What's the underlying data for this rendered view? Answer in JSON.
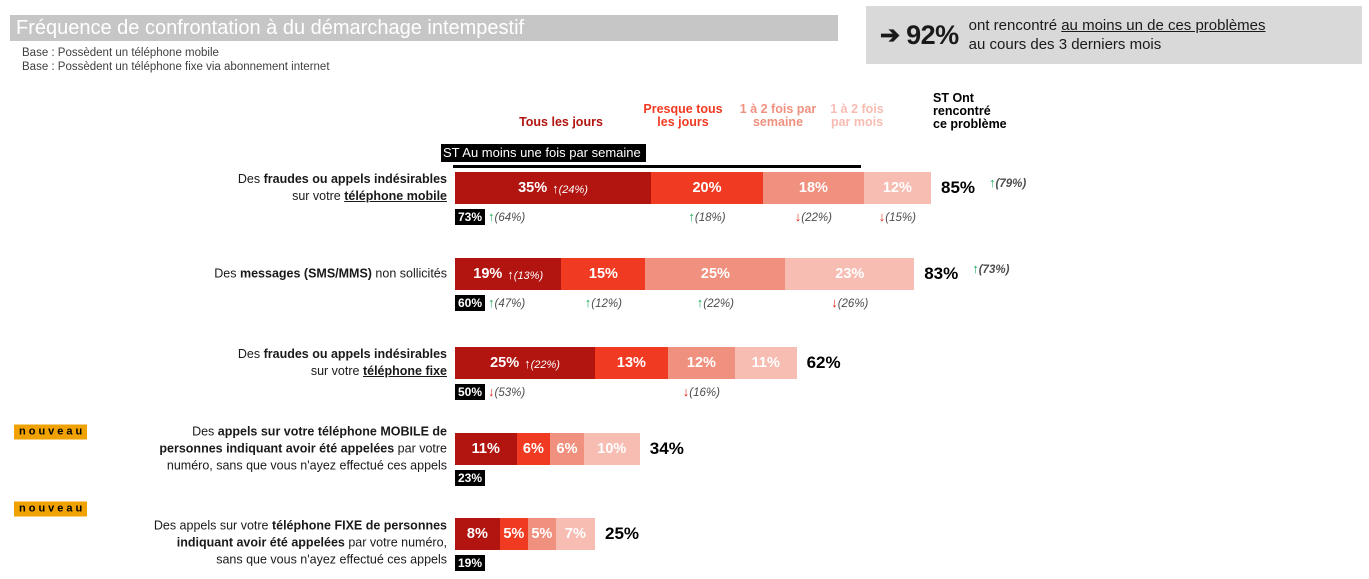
{
  "title": "Fréquence de confrontation à du démarchage intempestif",
  "base_lines": {
    "line1": "Base : Possèdent un téléphone mobile",
    "line2": "Base : Possèdent un téléphone fixe via abonnement internet"
  },
  "headline": {
    "arrow": "➔",
    "value": "92%",
    "text_before_underline": "ont rencontré ",
    "text_underlined": "au moins un de ces problèmes",
    "text_line2": "au cours des 3 derniers mois"
  },
  "legend": [
    {
      "label": "Tous les jours",
      "color": "#b21410"
    },
    {
      "label": "Presque tous\nles jours",
      "color": "#f13a22"
    },
    {
      "label": "1 à 2 fois par\nsemaine",
      "color": "#f0907e"
    },
    {
      "label": "1 à 2 fois\npar mois",
      "color": "#f7bcb2"
    }
  ],
  "st_col_header": "ST Ont\nrencontré\nce problème",
  "st_week_axis_label": "ST Au moins une fois par semaine",
  "badge_text": "nouveau",
  "chart_data": {
    "type": "bar",
    "orientation": "horizontal-stacked",
    "unit": "%",
    "categories": [
      "Tous les jours",
      "Presque tous les jours",
      "1 à 2 fois par semaine",
      "1 à 2 fois par mois"
    ],
    "category_colors": [
      "#b21410",
      "#f13a22",
      "#f0907e",
      "#f7bcb2"
    ],
    "rows": [
      {
        "badge": null,
        "label_parts": [
          {
            "t": "Des "
          },
          {
            "t": "fraudes ou appels indésirables",
            "b": 1
          },
          {
            "t": "\nsur votre "
          },
          {
            "t": "téléphone mobile",
            "b": 1,
            "u": 1
          }
        ],
        "values": [
          35,
          20,
          18,
          12
        ],
        "value_labels": [
          "35%",
          "20%",
          "18%",
          "12%"
        ],
        "inbar_notes": [
          {
            "dir": "up",
            "text": "(24%)"
          },
          null,
          null,
          null
        ],
        "total": "85%",
        "total_note": {
          "dir": "up",
          "text": "(79%)"
        },
        "st_week": "73%",
        "st_week_note": {
          "dir": "up",
          "text": "(64%)"
        },
        "seg_notes": [
          null,
          {
            "dir": "up",
            "text": "(18%)"
          },
          {
            "dir": "down",
            "text": "(22%)"
          },
          {
            "dir": "down",
            "text": "(15%)"
          }
        ]
      },
      {
        "badge": null,
        "label_parts": [
          {
            "t": "Des "
          },
          {
            "t": "messages (SMS/MMS)",
            "b": 1
          },
          {
            "t": " non sollicités"
          }
        ],
        "values": [
          19,
          15,
          25,
          23
        ],
        "value_labels": [
          "19%",
          "15%",
          "25%",
          "23%"
        ],
        "inbar_notes": [
          {
            "dir": "up",
            "text": "(13%)"
          },
          null,
          null,
          null
        ],
        "total": "83%",
        "total_note": {
          "dir": "up",
          "text": "(73%)"
        },
        "st_week": "60%",
        "st_week_note": {
          "dir": "up",
          "text": "(47%)"
        },
        "seg_notes": [
          null,
          {
            "dir": "up",
            "text": "(12%)"
          },
          {
            "dir": "up",
            "text": "(22%)"
          },
          {
            "dir": "down",
            "text": "(26%)"
          }
        ]
      },
      {
        "badge": null,
        "label_parts": [
          {
            "t": "Des "
          },
          {
            "t": "fraudes ou appels indésirables",
            "b": 1
          },
          {
            "t": "\nsur votre "
          },
          {
            "t": "téléphone fixe",
            "b": 1,
            "u": 1
          }
        ],
        "values": [
          25,
          13,
          12,
          11
        ],
        "value_labels": [
          "25%",
          "13%",
          "12%",
          "11%"
        ],
        "inbar_notes": [
          {
            "dir": "up",
            "text": "(22%)"
          },
          null,
          null,
          null
        ],
        "total": "62%",
        "total_note": null,
        "st_week": "50%",
        "st_week_note": {
          "dir": "down",
          "text": "(53%)"
        },
        "seg_notes": [
          null,
          null,
          {
            "dir": "down",
            "text": "(16%)"
          },
          null
        ]
      },
      {
        "badge": "inline",
        "label_parts": [
          {
            "t": "Des "
          },
          {
            "t": "appels sur votre téléphone MOBILE de\npersonnes indiquant avoir été appelées",
            "b": 1
          },
          {
            "t": " par votre\nnuméro, sans que vous n'ayez effectué ces appels"
          }
        ],
        "values": [
          11,
          6,
          6,
          10
        ],
        "value_labels": [
          "11%",
          "6%",
          "6%",
          "10%"
        ],
        "inbar_notes": [
          null,
          null,
          null,
          null
        ],
        "total": "34%",
        "total_note": null,
        "st_week": "23%",
        "st_week_note": null,
        "seg_notes": [
          null,
          null,
          null,
          null
        ]
      },
      {
        "badge": "above",
        "label_parts": [
          {
            "t": "Des appels sur votre "
          },
          {
            "t": "téléphone FIXE de personnes\nindiquant avoir été appelées",
            "b": 1
          },
          {
            "t": " par votre numéro,\nsans que vous n'ayez effectué ces appels"
          }
        ],
        "values": [
          8,
          5,
          5,
          7
        ],
        "value_labels": [
          "8%",
          "5%",
          "5%",
          "7%"
        ],
        "inbar_notes": [
          null,
          null,
          null,
          null
        ],
        "total": "25%",
        "total_note": null,
        "st_week": "19%",
        "st_week_note": null,
        "seg_notes": [
          null,
          null,
          null,
          null
        ]
      }
    ]
  }
}
